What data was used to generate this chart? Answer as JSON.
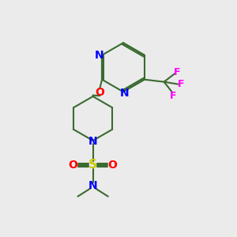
{
  "bg_color": "#ebebeb",
  "bond_color": "#3a6b30",
  "n_color": "#0000ff",
  "o_color": "#ff0000",
  "s_color": "#cccc00",
  "f_color": "#ff00ff",
  "line_width": 1.5,
  "font_size": 10,
  "figsize": [
    3.0,
    3.0
  ],
  "dpi": 100,
  "xlim": [
    0,
    10
  ],
  "ylim": [
    0,
    10
  ]
}
